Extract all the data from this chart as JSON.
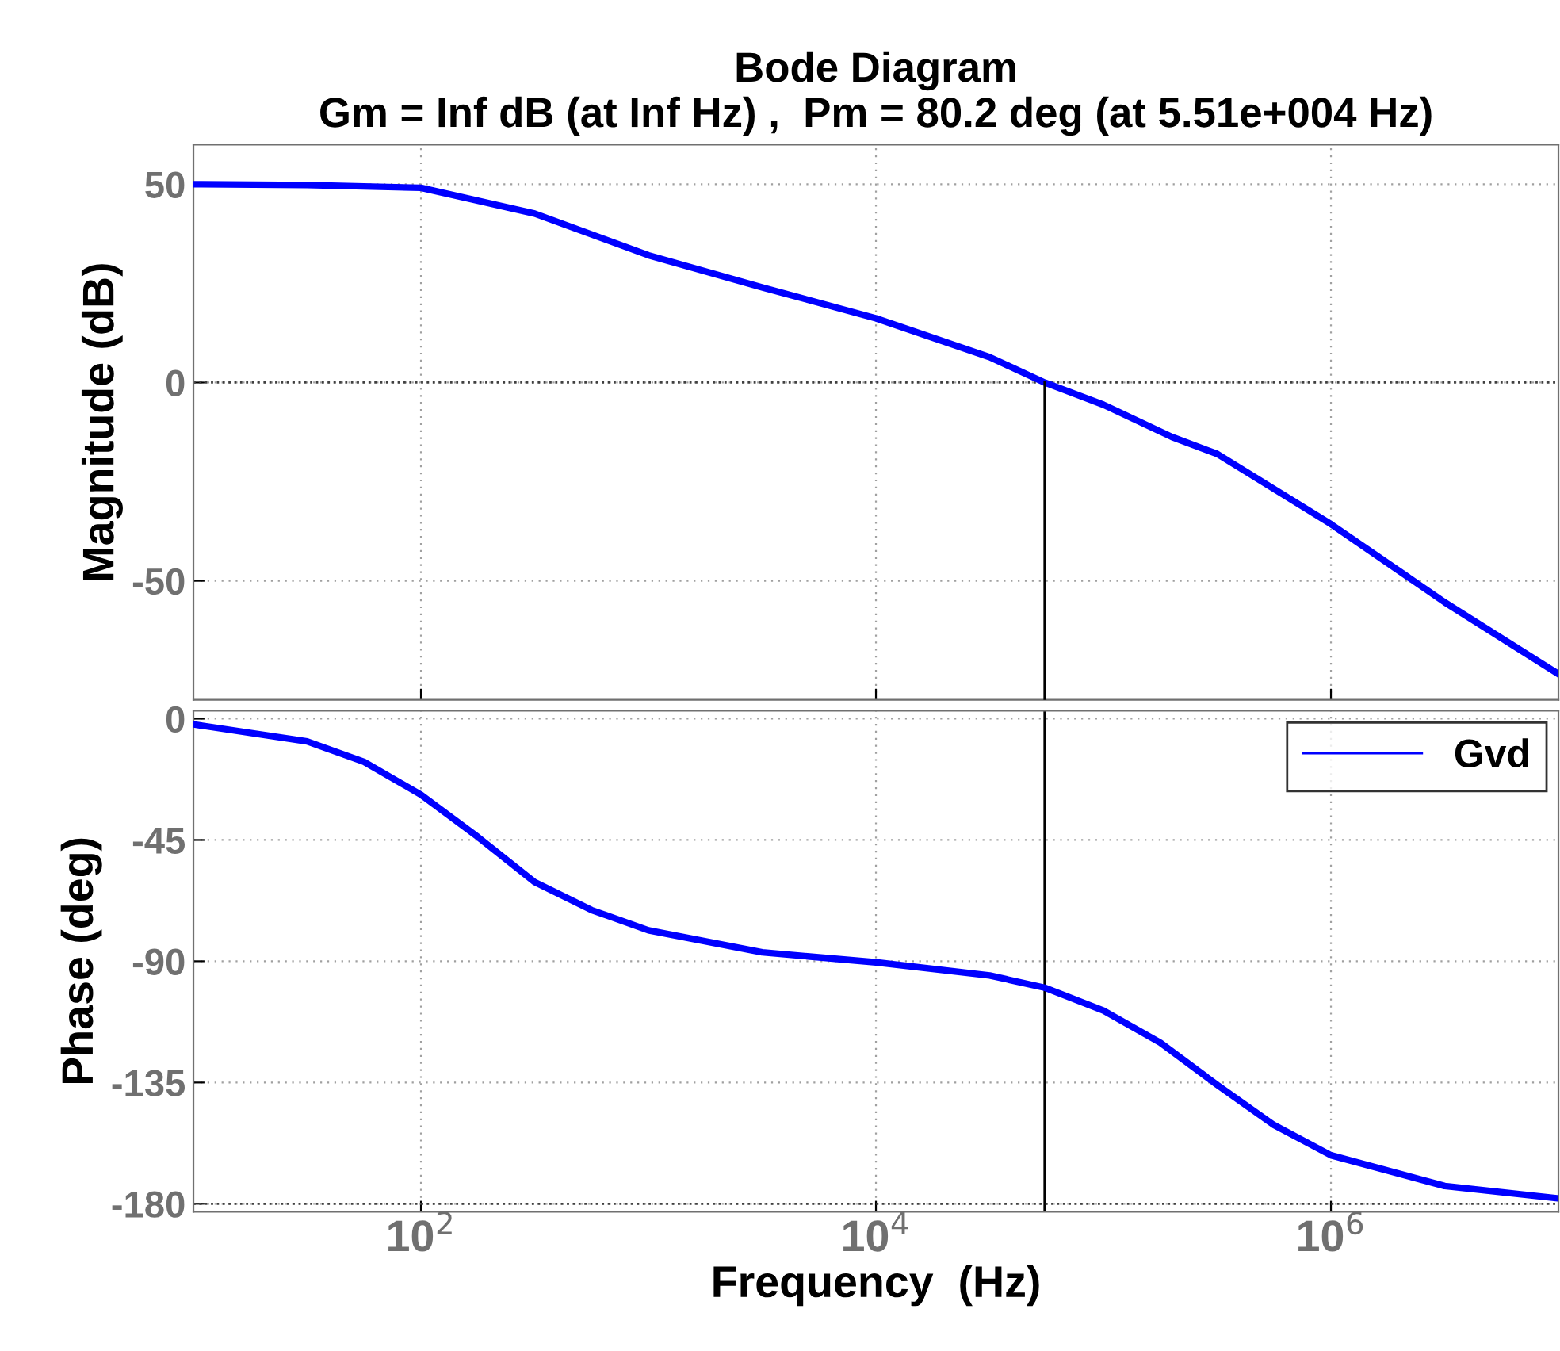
{
  "chart_data": [
    {
      "type": "line",
      "title": "Bode Diagram\nGm = Inf dB (at Inf Hz) ,  Pm = 80.2 deg (at 5.51e+004 Hz)",
      "ylabel": "Magnitude (dB)",
      "log": "x",
      "grid": true,
      "tick_labels": "y",
      "xlim": [
        10,
        10000000
      ],
      "ylim": [
        -80,
        60
      ],
      "xticks": [
        100,
        10000,
        1000000
      ],
      "yticks": [
        -50,
        0,
        50
      ],
      "series": [
        {
          "color": "#0000ff",
          "x": [
            10,
            31.6,
            100,
            316,
            1000,
            3162,
            10000,
            31623,
            55100,
            100000,
            199526,
            316228,
            1000000,
            3162278,
            10000000
          ],
          "values": [
            50,
            49.8,
            49.1,
            42.6,
            32.1,
            24,
            16.2,
            6.4,
            0,
            -5.6,
            -13.7,
            -18,
            -35.7,
            -55.4,
            -73.5
          ]
        },
        {
          "color": "#000000",
          "x": [
            55100,
            55100
          ],
          "values": [
            -80,
            0
          ]
        }
      ],
      "ref_lines": [
        {
          "axis": "y",
          "value": 0,
          "color": "#404040",
          "line_style": "dotted"
        }
      ]
    },
    {
      "type": "line",
      "xlabel": "Frequency  (Hz)",
      "ylabel": "Phase (deg)",
      "log": "x",
      "grid": true,
      "legend": "top right",
      "xlim": [
        10,
        10000000
      ],
      "ylim": [
        -183,
        3
      ],
      "xticks": [
        {
          "value": 100,
          "label": "10$^{2}$"
        },
        {
          "value": 10000,
          "label": "10$^{4}$"
        },
        {
          "value": 1000000,
          "label": "10$^{6}$"
        }
      ],
      "yticks": [
        -180,
        -135,
        -90,
        -45,
        0
      ],
      "series": [
        {
          "name": "Gvd",
          "color": "#0000ff",
          "x": [
            10,
            31.6,
            56.2,
            100,
            178,
            316,
            562,
            1000,
            3162,
            10000,
            31623,
            55100,
            100000,
            177828,
            316228,
            562341,
            1000000,
            3162278,
            10000000
          ],
          "values": [
            -2.1,
            -8.4,
            -16,
            -28.2,
            -43.9,
            -60.6,
            -71,
            -78.5,
            -86.7,
            -90.4,
            -95.3,
            -99.8,
            -108.3,
            -120.2,
            -135.9,
            -150.8,
            -162,
            -173.4,
            -178
          ]
        }
      ],
      "ref_lines": [
        {
          "axis": "x",
          "value": 55100,
          "color": "#000000",
          "line_style": "solid"
        },
        {
          "axis": "y",
          "value": -180,
          "color": "#404040",
          "line_style": "dotted"
        }
      ]
    }
  ]
}
